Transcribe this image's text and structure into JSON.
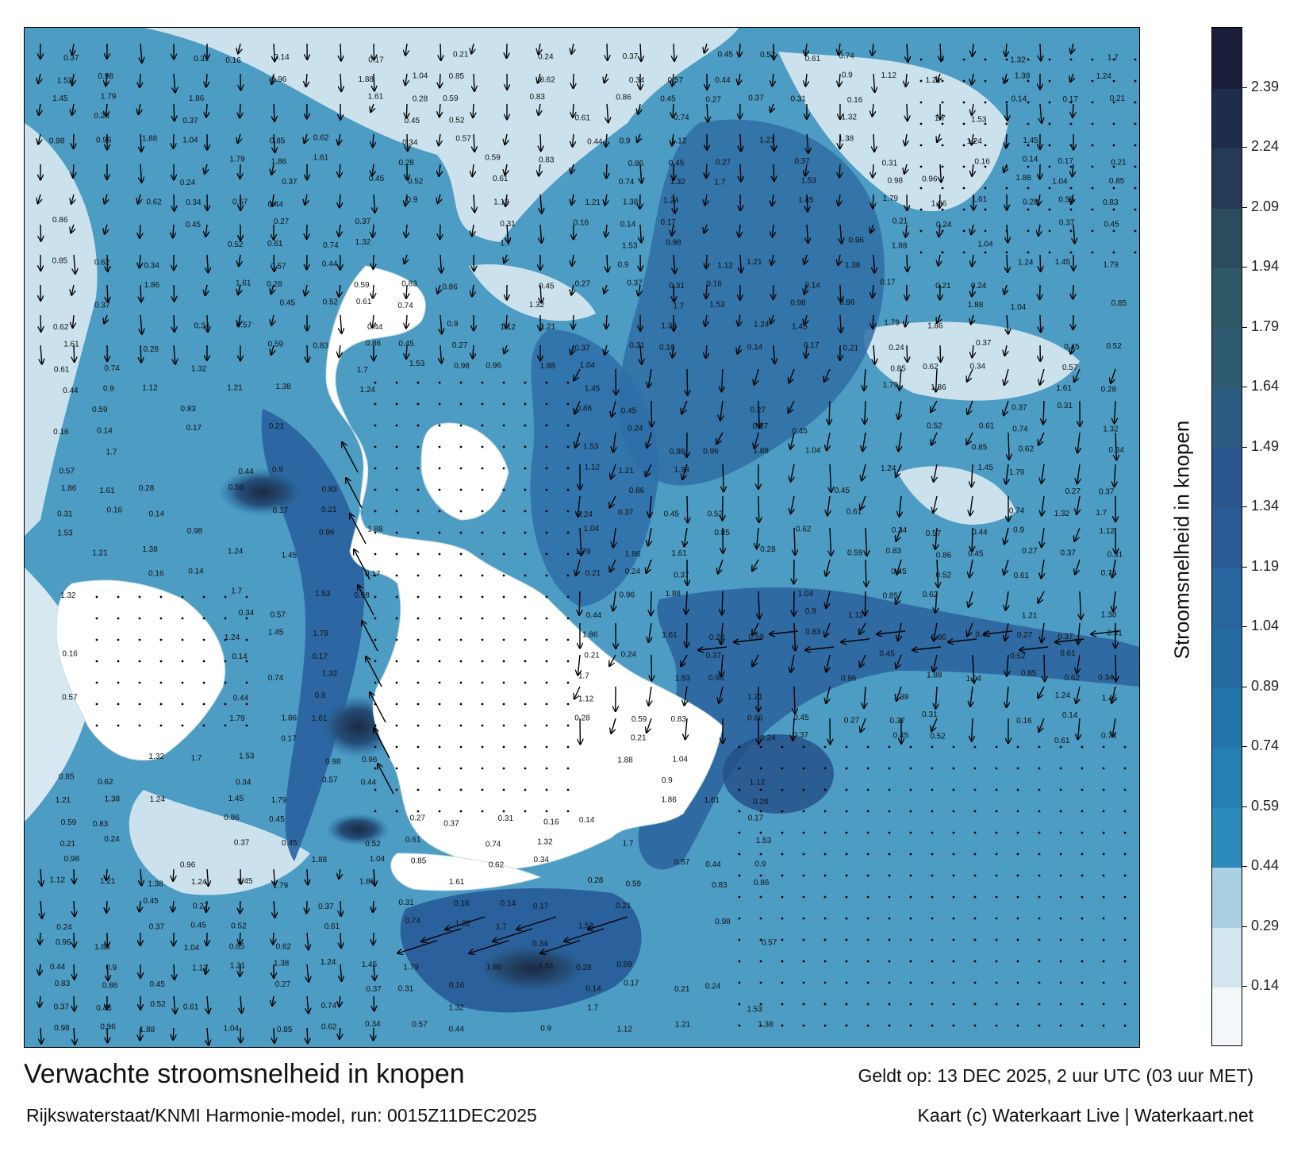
{
  "title": "Verwachte stroomsnelheid in knopen",
  "valid_time": "Geldt op: 13 DEC 2025, 2 uur UTC (03 uur MET)",
  "model_source": "Rijkswaterstaat/KNMI Harmonie-model, run: 0015Z11DEC2025",
  "copyright": "Kaart (c) Waterkaart Live | Waterkaart.net",
  "colorbar": {
    "label": "Stroomsnelheid in knopen",
    "ticks": [
      "0.14",
      "0.29",
      "0.44",
      "0.59",
      "0.74",
      "0.89",
      "1.04",
      "1.19",
      "1.34",
      "1.49",
      "1.64",
      "1.79",
      "1.94",
      "2.09",
      "2.24",
      "2.39"
    ],
    "colors": [
      "#f2f7fa",
      "#d3e6ef",
      "#a9d1e3",
      "#2a8ab9",
      "#267fb2",
      "#2275aa",
      "#236ba1",
      "#28649e",
      "#2a5b97",
      "#2b568e",
      "#2d5c82",
      "#2e5b72",
      "#2f5967",
      "#2a4c5c",
      "#243a55",
      "#1e2d4c",
      "#1a1e3a"
    ]
  },
  "map": {
    "sample_labels": [
      "0.37",
      "0.31",
      "0.16",
      "0.14",
      "0.17",
      "0.21",
      "0.24",
      "0.37",
      "0.45",
      "0.52",
      "0.61",
      "0.74",
      "1.32",
      "1.7",
      "1.53",
      "0.98",
      "0.96",
      "1.88",
      "1.04",
      "0.85",
      "0.62",
      "0.34",
      "0.57",
      "0.44",
      "0.9",
      "1.12",
      "1.21",
      "1.38",
      "1.24",
      "1.45",
      "1.79",
      "1.86",
      "1.61",
      "0.28",
      "0.59",
      "0.83",
      "0.86",
      "0.45",
      "0.27"
    ]
  }
}
